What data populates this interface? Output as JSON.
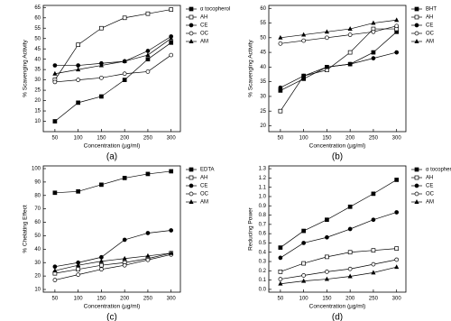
{
  "chart_data": [
    {
      "type": "line",
      "label": "(a)",
      "xlabel": "Concentration (µg/ml)",
      "ylabel": "% Scavenging Activity",
      "x": [
        50,
        100,
        150,
        200,
        250,
        300
      ],
      "xlim": [
        25,
        320
      ],
      "xticks": [
        50,
        100,
        150,
        200,
        250,
        300
      ],
      "ylim": [
        5,
        66
      ],
      "yticks": [
        10,
        15,
        20,
        25,
        30,
        35,
        40,
        45,
        50,
        55,
        60,
        65
      ],
      "series": [
        {
          "name": "α tocopherol",
          "color": "#000000",
          "marker": "square",
          "filled": true,
          "values": [
            10,
            19,
            22,
            30,
            40,
            48
          ]
        },
        {
          "name": "AH",
          "color": "#000000",
          "marker": "square",
          "filled": false,
          "values": [
            30,
            47,
            55,
            60,
            62,
            64
          ]
        },
        {
          "name": "CE",
          "color": "#000000",
          "marker": "circle",
          "filled": true,
          "values": [
            37,
            37,
            38,
            39,
            44,
            51
          ]
        },
        {
          "name": "OC",
          "color": "#000000",
          "marker": "circle",
          "filled": false,
          "values": [
            29,
            30,
            31,
            33,
            34,
            42
          ]
        },
        {
          "name": "AM",
          "color": "#000000",
          "marker": "triangle",
          "filled": true,
          "values": [
            33,
            35,
            37,
            39,
            42,
            50
          ]
        }
      ]
    },
    {
      "type": "line",
      "label": "(b)",
      "xlabel": "Concentration (µg/ml)",
      "ylabel": "% Scavenging Activity",
      "x": [
        50,
        100,
        150,
        200,
        250,
        300
      ],
      "xlim": [
        25,
        320
      ],
      "xticks": [
        50,
        100,
        150,
        200,
        250,
        300
      ],
      "ylim": [
        18,
        61
      ],
      "yticks": [
        20,
        25,
        30,
        35,
        40,
        45,
        50,
        55,
        60
      ],
      "series": [
        {
          "name": "BHT",
          "color": "#000000",
          "marker": "square",
          "filled": true,
          "values": [
            32,
            36,
            40,
            41,
            45,
            52
          ]
        },
        {
          "name": "AH",
          "color": "#000000",
          "marker": "square",
          "filled": false,
          "values": [
            25,
            37,
            39,
            45,
            53,
            53
          ]
        },
        {
          "name": "CE",
          "color": "#000000",
          "marker": "circle",
          "filled": true,
          "values": [
            33,
            37,
            40,
            41,
            43,
            45
          ]
        },
        {
          "name": "OC",
          "color": "#000000",
          "marker": "circle",
          "filled": false,
          "values": [
            48,
            49,
            50,
            51,
            52,
            54
          ]
        },
        {
          "name": "AM",
          "color": "#000000",
          "marker": "triangle",
          "filled": true,
          "values": [
            50,
            51,
            52,
            53,
            55,
            56
          ]
        }
      ]
    },
    {
      "type": "line",
      "label": "(c)",
      "xlabel": "Concentration (µg/ml)",
      "ylabel": "% Chelating Effect",
      "x": [
        50,
        100,
        150,
        200,
        250,
        300
      ],
      "xlim": [
        25,
        320
      ],
      "xticks": [
        50,
        100,
        150,
        200,
        250,
        300
      ],
      "ylim": [
        8,
        102
      ],
      "yticks": [
        10,
        20,
        30,
        40,
        50,
        60,
        70,
        80,
        90,
        100
      ],
      "series": [
        {
          "name": "EDTA",
          "color": "#000000",
          "marker": "square",
          "filled": true,
          "values": [
            82,
            83,
            88,
            93,
            96,
            98
          ]
        },
        {
          "name": "AH",
          "color": "#000000",
          "marker": "square",
          "filled": false,
          "values": [
            22,
            25,
            28,
            30,
            33,
            37
          ]
        },
        {
          "name": "CE",
          "color": "#000000",
          "marker": "circle",
          "filled": true,
          "values": [
            27,
            30,
            34,
            47,
            52,
            54
          ]
        },
        {
          "name": "OC",
          "color": "#000000",
          "marker": "circle",
          "filled": false,
          "values": [
            17,
            21,
            25,
            28,
            32,
            36
          ]
        },
        {
          "name": "AM",
          "color": "#000000",
          "marker": "triangle",
          "filled": true,
          "values": [
            24,
            28,
            31,
            33,
            35,
            37
          ]
        }
      ]
    },
    {
      "type": "line",
      "label": "(d)",
      "xlabel": "Concentration (µg/ml)",
      "ylabel": "Reducing Power",
      "x": [
        50,
        100,
        150,
        200,
        250,
        300
      ],
      "xlim": [
        25,
        320
      ],
      "xticks": [
        50,
        100,
        150,
        200,
        250,
        300
      ],
      "ylim": [
        -0.03,
        1.33
      ],
      "yticks": [
        {
          "value": 0,
          "label": "0.0"
        },
        0.1,
        0.2,
        0.3,
        0.4,
        0.5,
        0.6,
        0.7,
        0.8,
        0.9,
        {
          "value": 1,
          "label": "1.0"
        },
        1.1,
        1.2,
        1.3
      ],
      "series": [
        {
          "name": "α tocopherol",
          "color": "#000000",
          "marker": "square",
          "filled": true,
          "values": [
            0.45,
            0.63,
            0.75,
            0.89,
            1.03,
            1.18
          ]
        },
        {
          "name": "AH",
          "color": "#000000",
          "marker": "square",
          "filled": false,
          "values": [
            0.19,
            0.28,
            0.35,
            0.4,
            0.42,
            0.44
          ]
        },
        {
          "name": "CE",
          "color": "#000000",
          "marker": "circle",
          "filled": true,
          "values": [
            0.34,
            0.5,
            0.56,
            0.65,
            0.75,
            0.83
          ]
        },
        {
          "name": "OC",
          "color": "#000000",
          "marker": "circle",
          "filled": false,
          "values": [
            0.11,
            0.15,
            0.19,
            0.22,
            0.27,
            0.32
          ]
        },
        {
          "name": "AM",
          "color": "#000000",
          "marker": "triangle",
          "filled": true,
          "values": [
            0.06,
            0.09,
            0.11,
            0.14,
            0.18,
            0.24
          ]
        }
      ]
    }
  ]
}
